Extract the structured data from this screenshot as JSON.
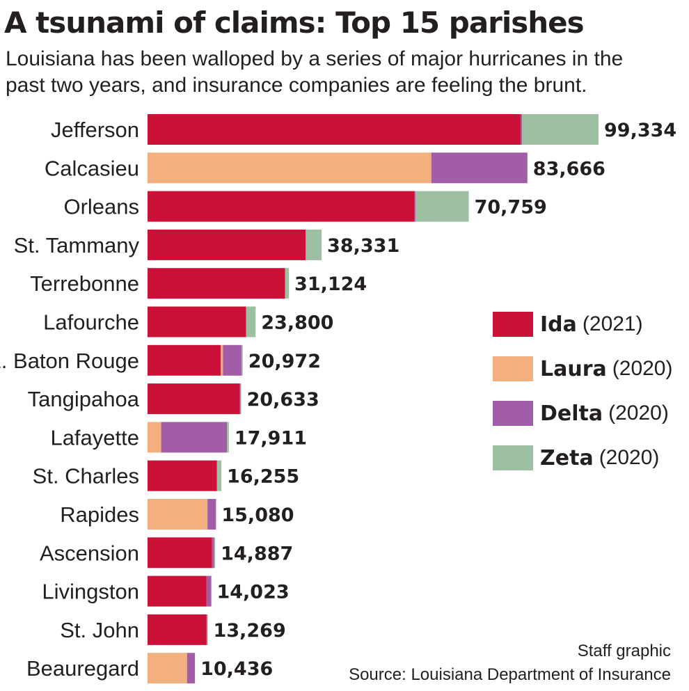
{
  "title": "A tsunami of claims: Top 15 parishes",
  "subtitle": "Louisiana has been walloped by a series of major hurricanes in the past two years, and insurance companies are feeling the brunt.",
  "credit": "Staff graphic",
  "source": "Source: Louisiana Department of Insurance",
  "legend": [
    {
      "name": "Ida",
      "year": "(2021)",
      "color": "#cc1138"
    },
    {
      "name": "Laura",
      "year": "(2020)",
      "color": "#f2b07f"
    },
    {
      "name": "Delta",
      "year": "(2020)",
      "color": "#a25da8"
    },
    {
      "name": "Zeta",
      "year": "(2020)",
      "color": "#9dbfa2"
    }
  ],
  "chart_data": {
    "type": "bar",
    "orientation": "horizontal",
    "stacked": true,
    "title": "A tsunami of claims: Top 15 parishes",
    "categories": [
      "Jefferson",
      "Calcasieu",
      "Orleans",
      "St. Tammany",
      "Terrebonne",
      "Lafourche",
      "E. Baton Rouge",
      "Tangipahoa",
      "Lafayette",
      "St. Charles",
      "Rapides",
      "Ascension",
      "Livingston",
      "St. John",
      "Beauregard"
    ],
    "totals": [
      "99,334",
      "83,666",
      "70,759",
      "38,331",
      "31,124",
      "23,800",
      "20,972",
      "20,633",
      "17,911",
      "16,255",
      "15,080",
      "14,887",
      "14,023",
      "13,269",
      "10,436"
    ],
    "series": [
      {
        "name": "Ida (2021)",
        "color": "#cc1138",
        "values": [
          82200,
          0,
          58800,
          34800,
          30300,
          21700,
          16100,
          20300,
          0,
          15300,
          0,
          14200,
          13000,
          13000,
          0
        ]
      },
      {
        "name": "Laura (2020)",
        "color": "#f2b07f",
        "values": [
          0,
          62500,
          0,
          0,
          0,
          0,
          500,
          0,
          3000,
          0,
          13200,
          0,
          0,
          0,
          8700
        ]
      },
      {
        "name": "Delta (2020)",
        "color": "#a25da8",
        "values": [
          300,
          21166,
          200,
          0,
          0,
          0,
          4100,
          200,
          14500,
          0,
          1880,
          500,
          1000,
          100,
          1736
        ]
      },
      {
        "name": "Zeta (2020)",
        "color": "#9dbfa2",
        "values": [
          16834,
          0,
          11759,
          3531,
          824,
          2100,
          272,
          133,
          411,
          955,
          0,
          187,
          23,
          169,
          0
        ]
      }
    ],
    "xlim": [
      0,
      99334
    ],
    "grid": false,
    "legend_position": "right"
  }
}
